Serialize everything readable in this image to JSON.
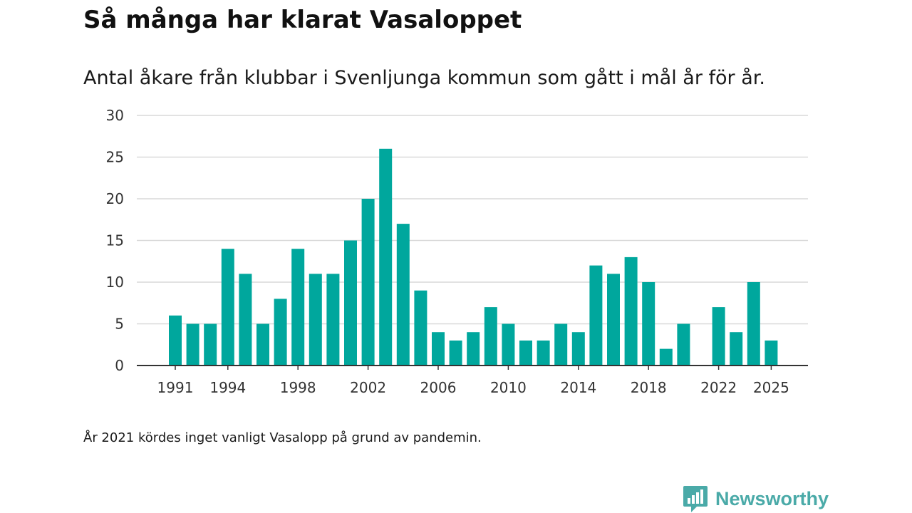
{
  "chart_data": {
    "type": "bar",
    "title": "Så många har klarat Vasaloppet",
    "subtitle": "Antal åkare från klubbar i Svenljunga kommun som gått i mål år för år.",
    "x": [
      1991,
      1992,
      1993,
      1994,
      1995,
      1996,
      1997,
      1998,
      1999,
      2000,
      2001,
      2002,
      2003,
      2004,
      2005,
      2006,
      2007,
      2008,
      2009,
      2010,
      2011,
      2012,
      2013,
      2014,
      2015,
      2016,
      2017,
      2018,
      2019,
      2020,
      2021,
      2022,
      2023,
      2024,
      2025
    ],
    "values": [
      6,
      5,
      5,
      14,
      11,
      5,
      8,
      14,
      11,
      11,
      15,
      20,
      26,
      17,
      9,
      4,
      3,
      4,
      7,
      5,
      3,
      3,
      5,
      4,
      12,
      11,
      13,
      10,
      2,
      5,
      null,
      7,
      4,
      10,
      3
    ],
    "x_tick_labels": [
      "1991",
      "1994",
      "1998",
      "2002",
      "2006",
      "2010",
      "2014",
      "2018",
      "2022",
      "2025"
    ],
    "y_ticks": [
      "0",
      "5",
      "10",
      "15",
      "20",
      "25",
      "30"
    ],
    "ylim": [
      0,
      30
    ],
    "xlabel": "",
    "ylabel": "",
    "grid": true,
    "bar_color": "#00a79d"
  },
  "note": "År 2021 kördes inget vanligt Vasalopp på grund av pandemin.",
  "brand": {
    "name": "Newsworthy",
    "icon": "newsworthy-logo-icon",
    "color": "#4aaaa8"
  }
}
